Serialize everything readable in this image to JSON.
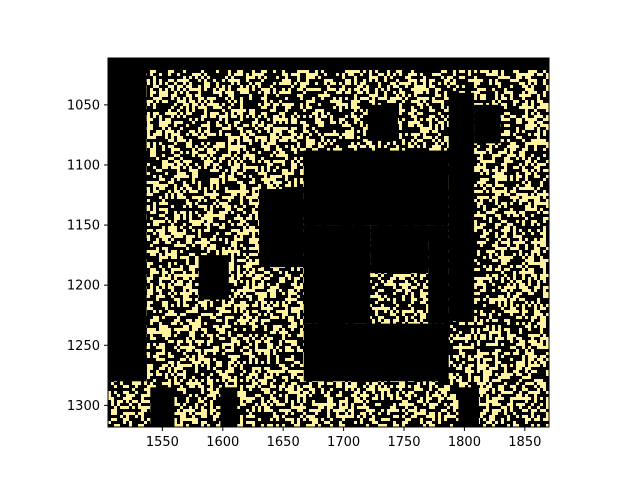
{
  "chart_data": {
    "type": "heatmap",
    "title": "",
    "xlabel": "",
    "ylabel": "",
    "xlim": [
      1505,
      1870
    ],
    "ylim": [
      1318,
      1011
    ],
    "y_inverted": true,
    "grid": false,
    "legend": "none",
    "colors": {
      "low": "#000000",
      "high": "#fff3a0"
    },
    "x_ticks": [
      1550,
      1600,
      1650,
      1700,
      1750,
      1800,
      1850
    ],
    "x_tick_labels": [
      "1550",
      "1600",
      "1650",
      "1700",
      "1750",
      "1800",
      "1850"
    ],
    "y_ticks": [
      1050,
      1100,
      1150,
      1200,
      1250,
      1300
    ],
    "y_tick_labels": [
      "1050",
      "1100",
      "1150",
      "1200",
      "1250",
      "1300"
    ],
    "matrix_description": "binary sparse matrix pattern; dense black blocks with scattered yellow nonzeros",
    "black_regions": [
      {
        "x0": 1505,
        "x1": 1870,
        "y0": 1011,
        "y1": 1021
      },
      {
        "x0": 1505,
        "x1": 1537,
        "y0": 1021,
        "y1": 1280
      },
      {
        "x0": 1667,
        "x1": 1787,
        "y0": 1088,
        "y1": 1150
      },
      {
        "x0": 1667,
        "x1": 1787,
        "y0": 1232,
        "y1": 1280
      },
      {
        "x0": 1667,
        "x1": 1722,
        "y0": 1150,
        "y1": 1232
      },
      {
        "x0": 1770,
        "x1": 1787,
        "y0": 1150,
        "y1": 1232
      },
      {
        "x0": 1630,
        "x1": 1667,
        "y0": 1120,
        "y1": 1185
      },
      {
        "x0": 1722,
        "x1": 1770,
        "y0": 1150,
        "y1": 1190
      },
      {
        "x0": 1787,
        "x1": 1808,
        "y0": 1040,
        "y1": 1230
      },
      {
        "x0": 1540,
        "x1": 1560,
        "y0": 1285,
        "y1": 1318
      },
      {
        "x0": 1598,
        "x1": 1612,
        "y0": 1285,
        "y1": 1318
      },
      {
        "x0": 1795,
        "x1": 1812,
        "y0": 1285,
        "y1": 1318
      },
      {
        "x0": 1808,
        "x1": 1830,
        "y0": 1050,
        "y1": 1082
      },
      {
        "x0": 1720,
        "x1": 1745,
        "y0": 1050,
        "y1": 1080
      },
      {
        "x0": 1580,
        "x1": 1605,
        "y0": 1175,
        "y1": 1212
      }
    ]
  }
}
